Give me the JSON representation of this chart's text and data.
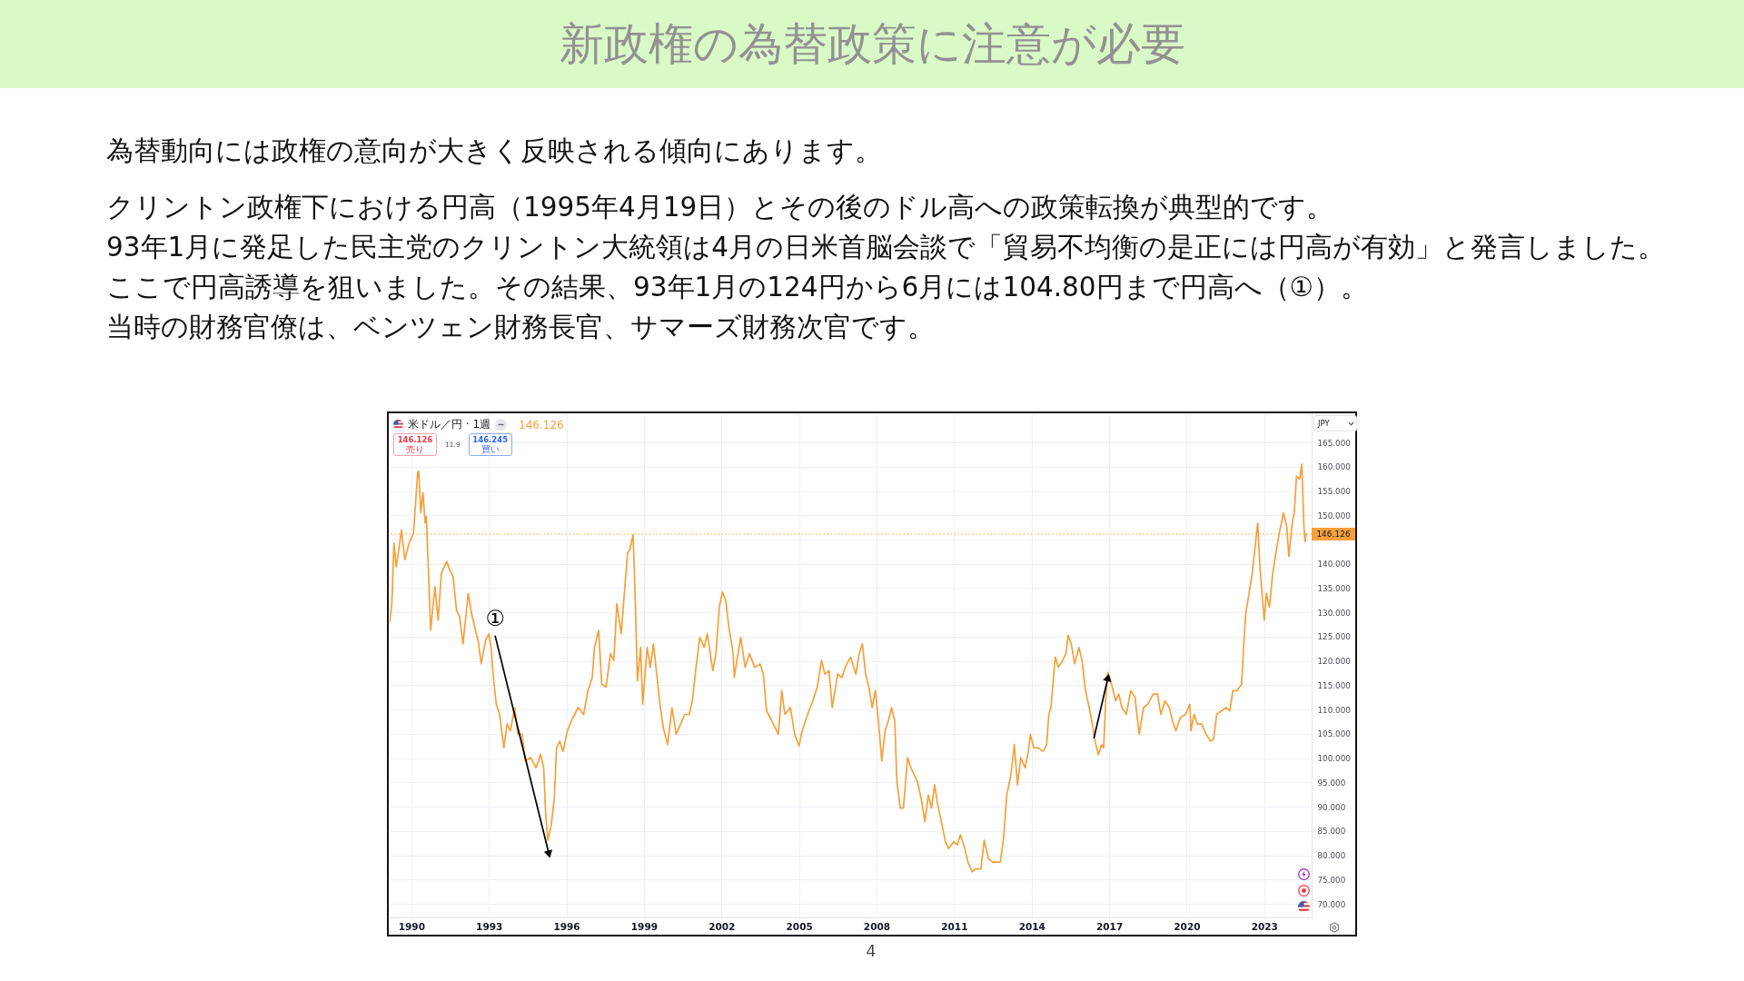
{
  "chart_data": {
    "type": "line",
    "title": "新政権の為替政策に注意が必要",
    "subtitle": "為替動向には政権の意向が大きく反映される傾向にあります。",
    "annotations": [
      "クリントン政権下における円高（1995年4月19日）とその後のドル高への政策転換が典型的です。",
      "93年1月に発足した民主党のクリントン大統領は4月の日米首脳会談で「貿易不均衡の是正には円高が有効」と発言しました。",
      "ここで円高誘導を狙いました。その結果、93年1月の124円から6月には104.80円まで円高へ（①）。",
      "当時の財務官僚は、ベンツェン財務長官、サマーズ財務次官です。",
      "米ドル／円 · 1週",
      "146.126",
      "146.126",
      "売り",
      "11.9",
      "146.245",
      "買い",
      "JPY",
      "4"
    ],
    "xlim": [
      "1989-03-01",
      "2024-11-01"
    ],
    "xticks": [
      "1990",
      "1993",
      "1996",
      "1999",
      "2002",
      "2005",
      "2008",
      "2011",
      "2014",
      "2017",
      "2020",
      "2023"
    ],
    "ylim": [
      67.2,
      171.0
    ],
    "yticks": [
      {
        "value": 70,
        "label": "70.000"
      },
      {
        "value": 75,
        "label": "75.000"
      },
      {
        "value": 80,
        "label": "80.000"
      },
      {
        "value": 85,
        "label": "85.000"
      },
      {
        "value": 90,
        "label": "90.000"
      },
      {
        "value": 95,
        "label": "95.000"
      },
      {
        "value": 100,
        "label": "100.000"
      },
      {
        "value": 105,
        "label": "105.000"
      },
      {
        "value": 110,
        "label": "110.000"
      },
      {
        "value": 115,
        "label": "115.000"
      },
      {
        "value": 120,
        "label": "120.000"
      },
      {
        "value": 125,
        "label": "125.000"
      },
      {
        "value": 130,
        "label": "130.000"
      },
      {
        "value": 135,
        "label": "135.000"
      },
      {
        "value": 140,
        "label": "140.000"
      },
      {
        "value": 145,
        "label": null
      },
      {
        "value": 150,
        "label": "150.000"
      },
      {
        "value": 155,
        "label": "155.000"
      },
      {
        "value": 160,
        "label": "160.000"
      },
      {
        "value": 165,
        "label": "165.000"
      }
    ],
    "grid": true,
    "ref_lines": [
      {
        "axis": "y",
        "value": 146.126,
        "label": "146.126",
        "color": "#f5a03a",
        "line_style": "dotted"
      }
    ],
    "series": [
      {
        "color": "#f5a03a",
        "x": [
          "1989-03-01",
          "1989-04-01",
          "1989-05-01",
          "1989-06-01",
          "1989-07-01",
          "1989-08-15",
          "1989-10-01",
          "1989-12-01",
          "1990-02-01",
          "1990-04-01",
          "1990-04-15",
          "1990-05-15",
          "1990-06-15",
          "1990-07-15",
          "1990-08-01",
          "1990-09-01",
          "1990-10-01",
          "1990-12-01",
          "1991-01-15",
          "1991-03-01",
          "1991-05-15",
          "1991-07-01",
          "1991-08-15",
          "1991-10-01",
          "1991-11-15",
          "1992-01-01",
          "1992-03-15",
          "1992-05-01",
          "1992-06-15",
          "1992-08-01",
          "1992-09-15",
          "1992-11-15",
          "1993-01-01",
          "1993-02-01",
          "1993-03-01",
          "1993-04-15",
          "1993-06-01",
          "1993-08-01",
          "1993-09-15",
          "1993-11-01",
          "1994-01-01",
          "1994-02-15",
          "1994-04-15",
          "1994-06-01",
          "1994-08-15",
          "1994-11-01",
          "1995-01-01",
          "1995-02-15",
          "1995-03-15",
          "1995-04-15",
          "1995-06-01",
          "1995-07-15",
          "1995-08-15",
          "1995-10-01",
          "1995-11-15",
          "1996-01-15",
          "1996-04-01",
          "1996-06-15",
          "1996-09-01",
          "1996-11-01",
          "1997-01-01",
          "1997-02-01",
          "1997-04-01",
          "1997-05-15",
          "1997-07-15",
          "1997-09-15",
          "1997-11-01",
          "1997-12-15",
          "1998-02-15",
          "1998-03-15",
          "1998-05-15",
          "1998-06-15",
          "1998-08-01",
          "1998-09-01",
          "1998-10-01",
          "1998-11-15",
          "1998-12-15",
          "1999-02-15",
          "1999-04-01",
          "1999-05-15",
          "1999-07-01",
          "1999-08-15",
          "1999-10-01",
          "1999-12-01",
          "2000-02-01",
          "2000-04-01",
          "2000-06-01",
          "2000-08-01",
          "2000-10-01",
          "2000-11-15",
          "2001-01-01",
          "2001-03-01",
          "2001-05-01",
          "2001-06-15",
          "2001-09-01",
          "2001-10-15",
          "2001-12-01",
          "2002-01-15",
          "2002-03-01",
          "2002-04-15",
          "2002-06-15",
          "2002-07-01",
          "2002-08-15",
          "2002-10-01",
          "2002-12-01",
          "2003-02-01",
          "2003-04-15",
          "2003-07-01",
          "2003-08-15",
          "2003-10-01",
          "2003-12-15",
          "2004-03-15",
          "2004-05-01",
          "2004-06-15",
          "2004-09-01",
          "2004-11-01",
          "2005-01-01",
          "2005-02-15",
          "2005-04-15",
          "2005-07-15",
          "2005-09-15",
          "2005-11-15",
          "2006-01-01",
          "2006-03-01",
          "2006-04-15",
          "2006-07-01",
          "2006-09-01",
          "2006-10-15",
          "2007-01-01",
          "2007-03-15",
          "2007-05-01",
          "2007-06-15",
          "2007-08-01",
          "2007-09-15",
          "2007-11-01",
          "2007-12-15",
          "2008-02-01",
          "2008-03-15",
          "2008-05-01",
          "2008-06-15",
          "2008-08-01",
          "2008-09-15",
          "2008-10-15",
          "2008-12-01",
          "2009-01-15",
          "2009-03-15",
          "2009-05-01",
          "2009-06-15",
          "2009-08-01",
          "2009-10-01",
          "2009-11-15",
          "2010-01-01",
          "2010-02-15",
          "2010-04-01",
          "2010-05-15",
          "2010-07-15",
          "2010-09-01",
          "2010-10-15",
          "2011-01-01",
          "2011-02-15",
          "2011-04-01",
          "2011-06-01",
          "2011-07-15",
          "2011-09-15",
          "2011-11-01",
          "2012-01-15",
          "2012-03-01",
          "2012-05-01",
          "2012-07-01",
          "2012-09-01",
          "2012-10-15",
          "2012-12-01",
          "2013-01-15",
          "2013-03-15",
          "2013-05-01",
          "2013-06-15",
          "2013-08-01",
          "2013-10-01",
          "2013-11-15",
          "2013-12-15",
          "2014-02-01",
          "2014-04-01",
          "2014-06-15",
          "2014-08-01",
          "2014-09-01",
          "2014-10-01",
          "2014-12-01",
          "2015-01-15",
          "2015-03-15",
          "2015-05-01",
          "2015-06-01",
          "2015-07-15",
          "2015-09-01",
          "2015-11-01",
          "2015-12-15",
          "2016-02-01",
          "2016-03-15",
          "2016-05-01",
          "2016-06-15",
          "2016-08-01",
          "2016-09-15",
          "2016-10-15",
          "2016-11-15",
          "2016-12-15",
          "2017-02-15",
          "2017-04-01",
          "2017-05-15",
          "2017-07-01",
          "2017-09-01",
          "2017-11-01",
          "2018-01-01",
          "2018-03-01",
          "2018-05-01",
          "2018-07-01",
          "2018-09-15",
          "2018-11-15",
          "2019-01-01",
          "2019-03-01",
          "2019-05-01",
          "2019-06-15",
          "2019-08-01",
          "2019-10-01",
          "2019-12-15",
          "2020-02-15",
          "2020-03-01",
          "2020-04-15",
          "2020-06-01",
          "2020-08-01",
          "2020-10-01",
          "2020-12-01",
          "2021-01-15",
          "2021-03-01",
          "2021-05-01",
          "2021-07-15",
          "2021-09-01",
          "2021-10-15",
          "2021-12-15",
          "2022-02-15",
          "2022-03-15",
          "2022-04-15",
          "2022-06-01",
          "2022-07-15",
          "2022-08-15",
          "2022-10-01",
          "2022-11-01",
          "2023-01-01",
          "2023-02-01",
          "2023-03-15",
          "2023-05-01",
          "2023-06-15",
          "2023-08-01",
          "2023-10-01",
          "2023-11-15",
          "2023-12-15",
          "2024-02-01",
          "2024-03-01",
          "2024-04-01",
          "2024-05-15",
          "2024-06-15",
          "2024-07-15",
          "2024-08-01",
          "2024-08-15"
        ],
        "values": [
          128.0,
          131.8,
          144.3,
          139.4,
          142.2,
          147.0,
          140.8,
          144.3,
          146.3,
          158.8,
          159.1,
          150.5,
          154.6,
          148.4,
          149.8,
          138.0,
          126.3,
          135.3,
          128.4,
          138.0,
          140.5,
          138.7,
          137.3,
          130.5,
          129.1,
          123.5,
          133.9,
          129.8,
          127.0,
          124.2,
          119.4,
          124.2,
          125.6,
          122.8,
          117.3,
          111.1,
          109.0,
          102.1,
          107.0,
          105.6,
          110.4,
          104.9,
          104.9,
          99.4,
          100.1,
          98.0,
          100.8,
          98.0,
          88.3,
          83.1,
          86.2,
          91.8,
          102.1,
          103.5,
          101.4,
          105.6,
          108.3,
          110.4,
          109.0,
          113.9,
          116.6,
          122.8,
          126.3,
          115.2,
          114.6,
          121.5,
          120.1,
          131.8,
          125.6,
          131.1,
          142.2,
          142.9,
          146.0,
          132.5,
          115.9,
          122.8,
          111.1,
          122.8,
          118.7,
          123.5,
          117.3,
          111.1,
          106.3,
          102.8,
          110.4,
          104.9,
          107.0,
          109.0,
          109.0,
          111.8,
          118.0,
          124.9,
          122.8,
          125.6,
          118.0,
          121.5,
          131.1,
          134.2,
          132.5,
          127.0,
          121.5,
          116.6,
          120.8,
          124.9,
          118.7,
          121.5,
          118.7,
          119.4,
          117.3,
          109.7,
          107.6,
          104.9,
          113.9,
          109.0,
          110.4,
          104.9,
          102.5,
          105.6,
          108.3,
          111.8,
          114.6,
          120.1,
          117.3,
          118.0,
          110.4,
          117.3,
          116.6,
          118.7,
          120.8,
          117.3,
          121.5,
          123.5,
          117.3,
          114.6,
          110.4,
          113.9,
          107.0,
          99.4,
          105.6,
          107.6,
          110.4,
          107.6,
          95.2,
          89.7,
          89.7,
          100.1,
          98.0,
          96.6,
          95.2,
          91.1,
          86.9,
          92.4,
          89.7,
          94.5,
          90.4,
          86.2,
          82.8,
          81.4,
          82.8,
          82.1,
          84.2,
          81.4,
          78.6,
          76.6,
          77.2,
          77.2,
          83.1,
          79.3,
          78.6,
          78.6,
          78.6,
          83.5,
          92.4,
          96.6,
          102.8,
          94.5,
          100.1,
          98.0,
          101.4,
          104.9,
          102.1,
          102.1,
          101.4,
          102.8,
          109.0,
          110.4,
          120.8,
          118.7,
          120.1,
          121.5,
          125.3,
          123.5,
          119.4,
          122.8,
          120.1,
          113.9,
          111.1,
          107.6,
          103.5,
          100.7,
          102.8,
          102.1,
          112.5,
          117.7,
          114.6,
          111.8,
          113.2,
          110.4,
          109.0,
          113.9,
          112.5,
          104.9,
          110.4,
          111.1,
          113.2,
          113.2,
          109.0,
          111.8,
          110.4,
          107.6,
          105.6,
          108.3,
          109.0,
          111.1,
          105.6,
          109.0,
          107.0,
          107.0,
          104.9,
          103.5,
          103.9,
          109.0,
          109.7,
          110.4,
          109.7,
          113.9,
          113.9,
          115.2,
          122.8,
          129.8,
          133.9,
          138.0,
          142.2,
          148.4,
          139.4,
          128.4,
          133.9,
          131.1,
          138.0,
          142.2,
          146.3,
          150.5,
          147.7,
          141.5,
          148.4,
          150.5,
          158.1,
          157.4,
          160.5,
          147.7,
          144.6,
          146.1
        ]
      },
      {
        "name": "①",
        "color": "#000000",
        "marker": "triangle",
        "x": [
          "1993-04-01",
          "1995-05-01"
        ],
        "values": [
          125.1,
          80.2
        ]
      },
      {
        "color": "#000000",
        "marker": "triangle",
        "x": [
          "2016-06-01",
          "2016-12-15"
        ],
        "values": [
          104.2,
          116.6
        ]
      }
    ]
  }
}
